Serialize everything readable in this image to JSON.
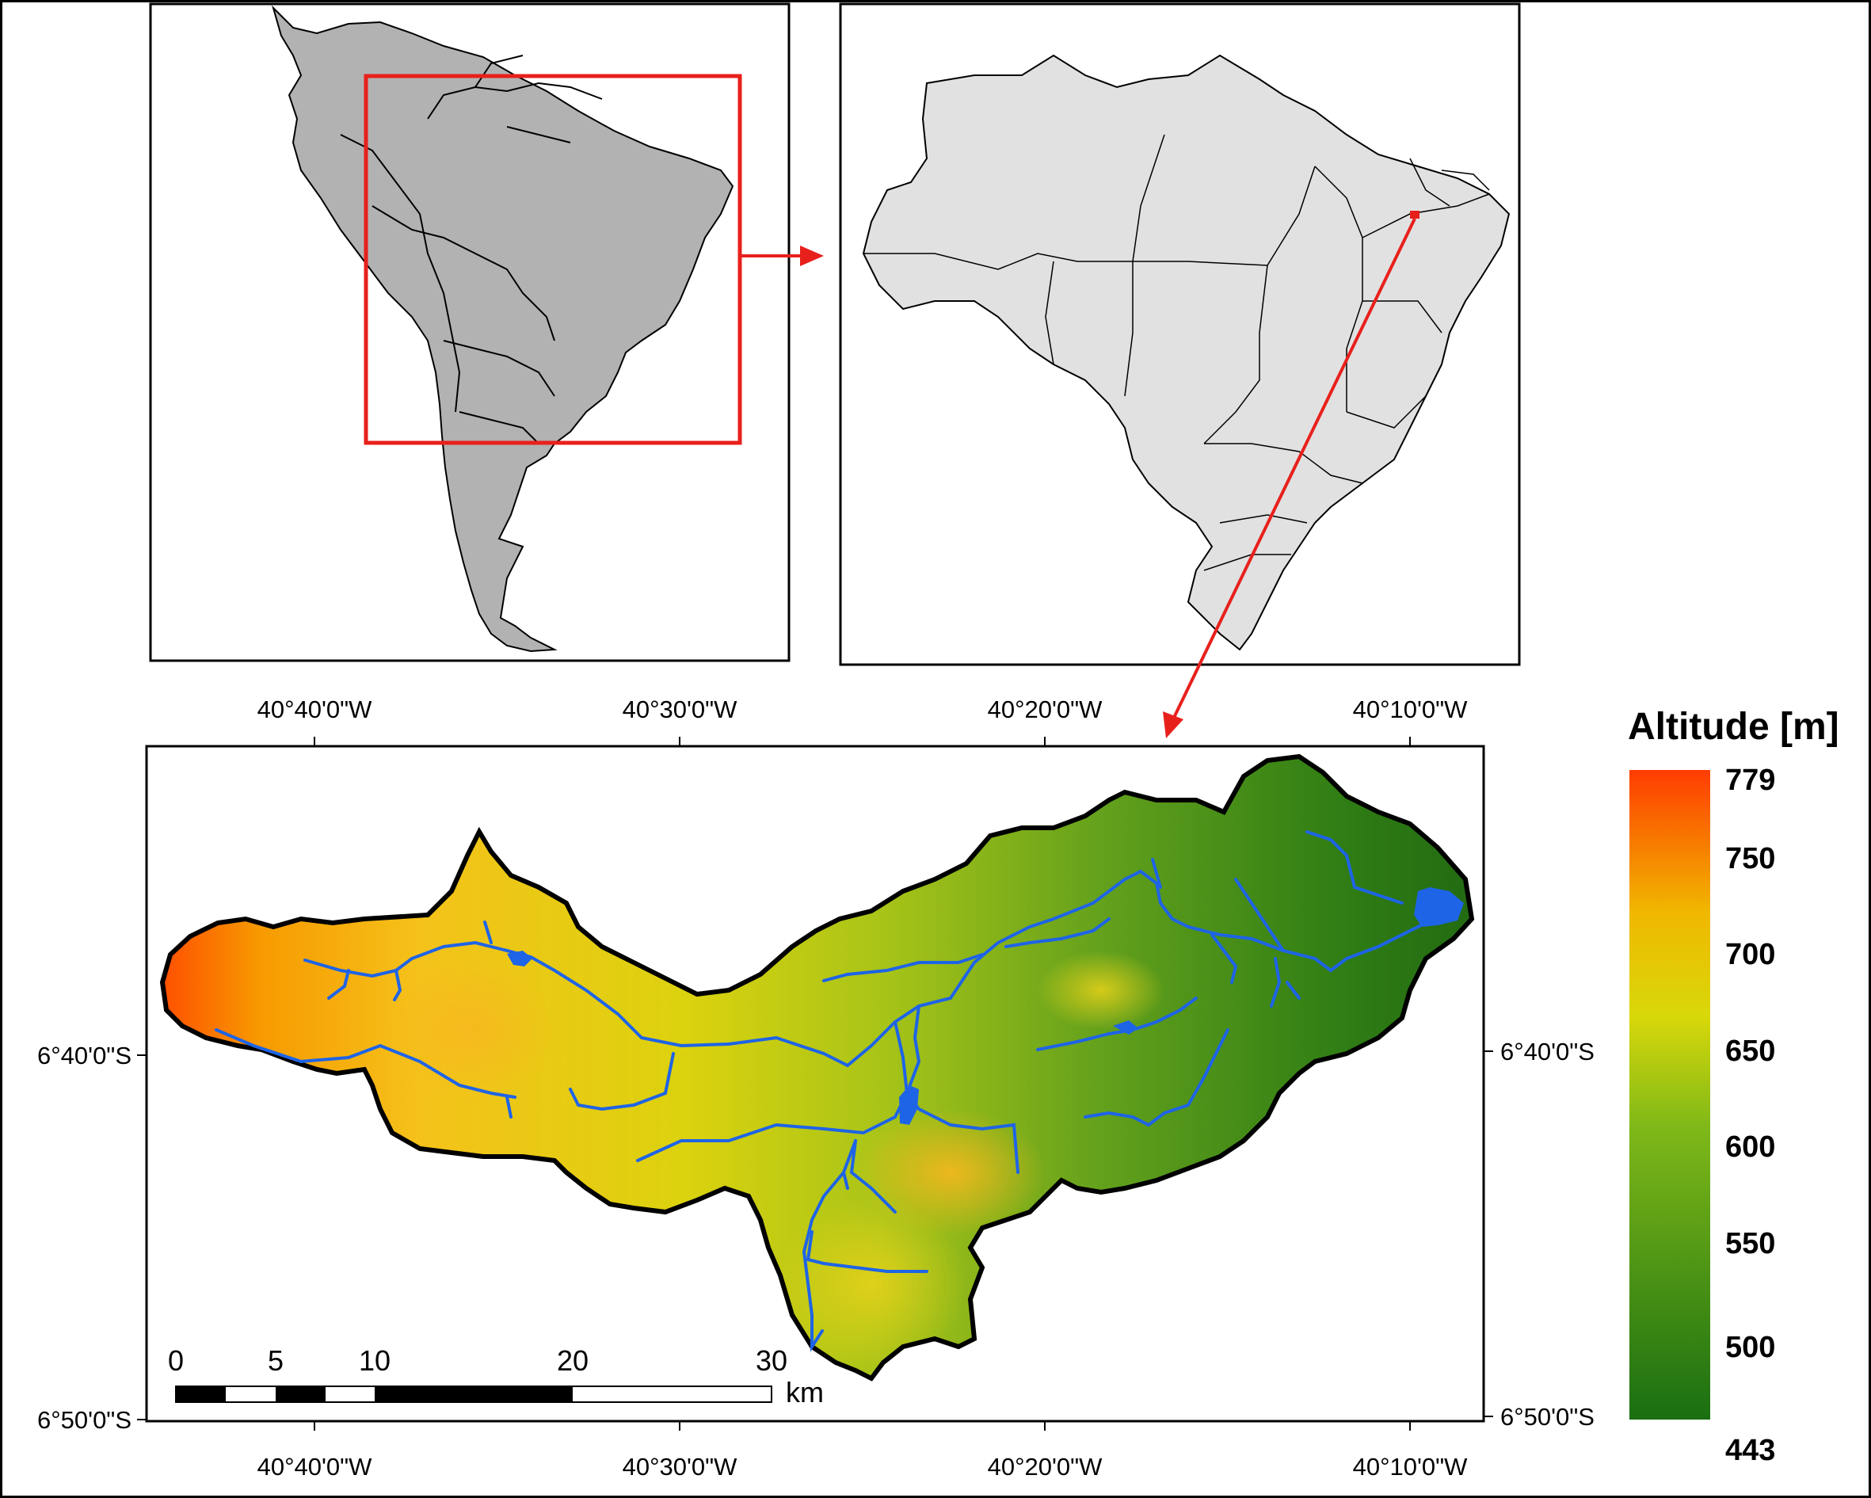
{
  "legend": {
    "title": "Altitude [m]",
    "max_label": "779",
    "min_label": "443",
    "ticks": [
      "750",
      "700",
      "650",
      "600",
      "550",
      "500"
    ],
    "color_low": "#1a6f12",
    "color_mid": "#d8d80a",
    "color_high": "#ff3c00"
  },
  "axes": {
    "top_labels": [
      "40°40'0\"W",
      "40°30'0\"W",
      "40°20'0\"W",
      "40°10'0\"W"
    ],
    "bottom_labels": [
      "40°40'0\"W",
      "40°30'0\"W",
      "40°20'0\"W",
      "40°10'0\"W"
    ],
    "left_labels": [
      "6°40'0\"S",
      "6°50'0\"S"
    ],
    "right_labels": [
      "6°40'0\"S",
      "6°50'0\"S"
    ]
  },
  "scale_bar": {
    "labels": [
      "0",
      "5",
      "10",
      "20",
      "30"
    ],
    "unit": "km"
  },
  "colors": {
    "continent_fill": "#b2b2b2",
    "brazil_fill": "#e1e1e1",
    "highlight": "#e8201c",
    "river": "#1e64e6"
  }
}
